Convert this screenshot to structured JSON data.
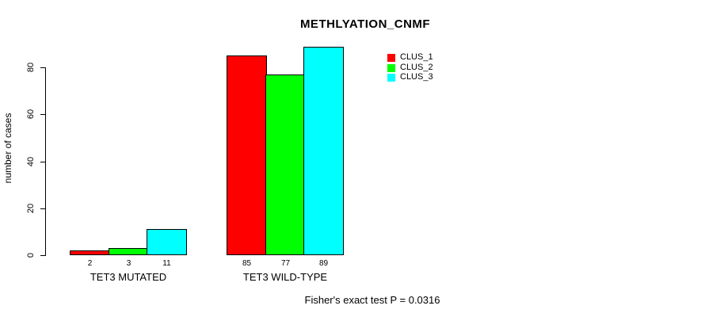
{
  "chart_data": {
    "type": "bar",
    "title": "METHLYATION_CNMF",
    "ylabel": "number of cases",
    "xlabel": "",
    "categories": [
      "TET3 MUTATED",
      "TET3 WILD-TYPE"
    ],
    "series": [
      {
        "name": "CLUS_1",
        "color": "#ff0000",
        "values": [
          2,
          85
        ]
      },
      {
        "name": "CLUS_2",
        "color": "#00ff00",
        "values": [
          3,
          77
        ]
      },
      {
        "name": "CLUS_3",
        "color": "#00ffff",
        "values": [
          11,
          89
        ]
      }
    ],
    "yticks": [
      0,
      20,
      40,
      60,
      80
    ],
    "ylim": [
      0,
      92
    ],
    "grid": false,
    "legend_position": "top-right",
    "bar_border_color": "#000000",
    "annotation": "Fisher's exact test P = 0.0316"
  }
}
